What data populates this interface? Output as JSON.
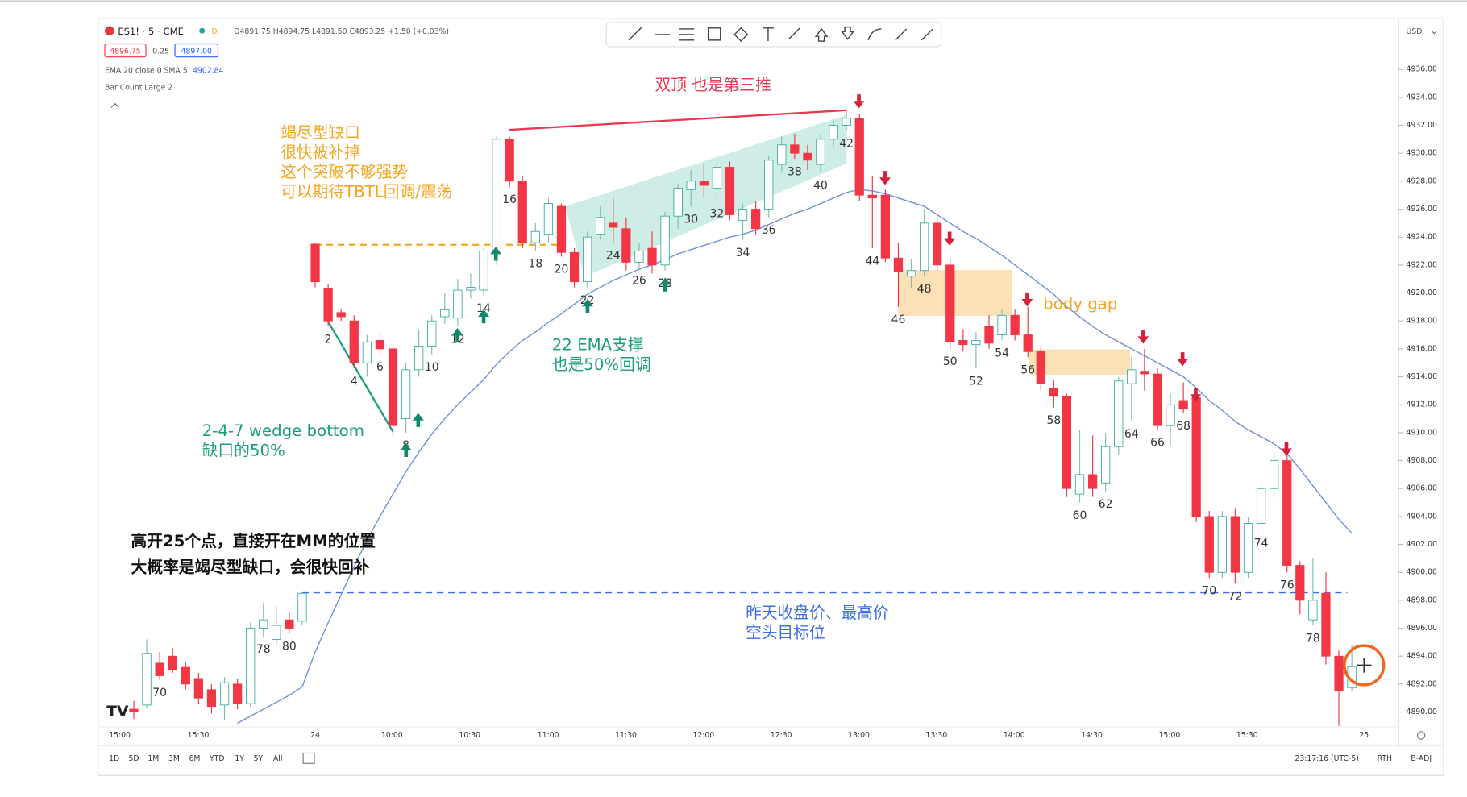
{
  "header": {
    "symbol": "ES1! · 5 · CME",
    "ohlc": "O4891.75 H4894.75 L4891.50 C4893.25 +1.50 (+0.03%)",
    "bid": "4896.75",
    "spread": "0.25",
    "ask": "4897.00",
    "indicator": "EMA 20 close 0 SMA 5",
    "indicator_value": "4902.84",
    "bar_count": "Bar Count Large 2",
    "currency": "USD"
  },
  "chart_data": {
    "type": "candlestick",
    "up_color": "#ffffff",
    "up_border": "#26a69a",
    "down_color": "#f23645",
    "ema_color": "#6f8fdc",
    "ohlc": [
      [
        4890.2,
        4890.8,
        4889.5,
        4890.0
      ],
      [
        4890.5,
        4895.2,
        4890.3,
        4894.2
      ],
      [
        4893.5,
        4894.3,
        4892.3,
        4892.6
      ],
      [
        4894.0,
        4894.6,
        4892.8,
        4893.0
      ],
      [
        4893.2,
        4893.6,
        4891.6,
        4892.0
      ],
      [
        4892.4,
        4892.8,
        4890.6,
        4891.0
      ],
      [
        4891.6,
        4892.0,
        4889.9,
        4890.4
      ],
      [
        4890.5,
        4892.5,
        4889.4,
        4892.1
      ],
      [
        4892.0,
        4892.4,
        4890.2,
        4890.6
      ],
      [
        4890.6,
        4896.4,
        4890.4,
        4896.0
      ],
      [
        4896.0,
        4897.8,
        4895.4,
        4896.6
      ],
      [
        4895.2,
        4897.6,
        4894.8,
        4896.2
      ],
      [
        4896.6,
        4897.2,
        4895.6,
        4896.0
      ],
      [
        4896.5,
        4898.6,
        4896.2,
        4898.5
      ],
      [
        4923.5,
        4923.6,
        4920.4,
        4920.8
      ],
      [
        4920.3,
        4920.6,
        4917.6,
        4918.0
      ],
      [
        4918.6,
        4918.8,
        4918.0,
        4918.3
      ],
      [
        4918.0,
        4918.4,
        4914.6,
        4915.0
      ],
      [
        4915.0,
        4917.0,
        4914.0,
        4916.5
      ],
      [
        4916.6,
        4917.2,
        4915.6,
        4916.0
      ],
      [
        4916.0,
        4916.2,
        4909.6,
        4910.5
      ],
      [
        4911.0,
        4915.0,
        4910.0,
        4914.5
      ],
      [
        4914.5,
        4917.4,
        4914.0,
        4916.2
      ],
      [
        4916.2,
        4918.4,
        4915.6,
        4918.0
      ],
      [
        4918.3,
        4920.0,
        4917.8,
        4918.8
      ],
      [
        4918.2,
        4921.0,
        4917.6,
        4920.2
      ],
      [
        4920.2,
        4921.4,
        4919.6,
        4920.4
      ],
      [
        4920.2,
        4923.2,
        4919.8,
        4923.0
      ],
      [
        4923.0,
        4931.2,
        4922.0,
        4931.0
      ],
      [
        4931.0,
        4931.2,
        4927.6,
        4928.0
      ],
      [
        4928.0,
        4928.4,
        4923.2,
        4923.6
      ],
      [
        4923.6,
        4925.0,
        4923.0,
        4924.4
      ],
      [
        4924.2,
        4926.8,
        4923.6,
        4926.4
      ],
      [
        4926.2,
        4926.4,
        4922.6,
        4922.9
      ],
      [
        4922.9,
        4923.2,
        4920.4,
        4920.8
      ],
      [
        4920.8,
        4924.4,
        4920.4,
        4924.0
      ],
      [
        4924.2,
        4926.2,
        4923.8,
        4925.4
      ],
      [
        4925.0,
        4926.8,
        4923.6,
        4924.7
      ],
      [
        4924.6,
        4925.4,
        4921.6,
        4922.2
      ],
      [
        4922.2,
        4923.6,
        4921.8,
        4923.0
      ],
      [
        4923.2,
        4924.4,
        4921.4,
        4922.0
      ],
      [
        4922.0,
        4925.8,
        4921.6,
        4925.5
      ],
      [
        4925.5,
        4927.8,
        4924.6,
        4927.5
      ],
      [
        4927.4,
        4928.8,
        4926.2,
        4928.0
      ],
      [
        4928.0,
        4929.2,
        4926.8,
        4927.7
      ],
      [
        4927.5,
        4929.4,
        4926.6,
        4929.0
      ],
      [
        4929.0,
        4929.4,
        4925.2,
        4925.6
      ],
      [
        4925.2,
        4926.4,
        4923.8,
        4926.0
      ],
      [
        4926.0,
        4926.6,
        4924.2,
        4924.6
      ],
      [
        4926.0,
        4929.8,
        4925.4,
        4929.5
      ],
      [
        4929.2,
        4931.2,
        4928.6,
        4930.6
      ],
      [
        4930.6,
        4931.4,
        4929.6,
        4930.0
      ],
      [
        4930.0,
        4930.6,
        4928.8,
        4929.5
      ],
      [
        4929.2,
        4931.4,
        4928.6,
        4931.0
      ],
      [
        4931.0,
        4932.4,
        4930.4,
        4932.0
      ],
      [
        4932.0,
        4933.0,
        4931.6,
        4932.5
      ],
      [
        4932.5,
        4932.8,
        4926.6,
        4927.0
      ],
      [
        4927.0,
        4928.4,
        4923.2,
        4926.8
      ],
      [
        4927.0,
        4927.4,
        4922.2,
        4922.5
      ],
      [
        4922.5,
        4923.6,
        4919.0,
        4921.5
      ],
      [
        4921.2,
        4922.4,
        4920.4,
        4921.6
      ],
      [
        4921.6,
        4926.0,
        4921.2,
        4925.0
      ],
      [
        4925.0,
        4925.6,
        4921.6,
        4922.0
      ],
      [
        4922.0,
        4922.4,
        4916.0,
        4916.5
      ],
      [
        4916.6,
        4917.4,
        4915.8,
        4916.3
      ],
      [
        4916.3,
        4917.2,
        4914.6,
        4916.6
      ],
      [
        4917.6,
        4918.4,
        4916.0,
        4916.4
      ],
      [
        4917.0,
        4918.8,
        4916.6,
        4918.4
      ],
      [
        4918.4,
        4918.8,
        4916.6,
        4917.0
      ],
      [
        4917.0,
        4919.0,
        4915.4,
        4915.8
      ],
      [
        4915.8,
        4916.2,
        4913.0,
        4913.5
      ],
      [
        4913.2,
        4913.8,
        4911.8,
        4912.6
      ],
      [
        4912.6,
        4912.8,
        4905.4,
        4906.0
      ],
      [
        4905.6,
        4910.2,
        4905.0,
        4907.0
      ],
      [
        4907.0,
        4909.8,
        4905.4,
        4906.0
      ],
      [
        4906.4,
        4910.0,
        4905.8,
        4909.0
      ],
      [
        4909.0,
        4914.0,
        4908.4,
        4913.7
      ],
      [
        4913.5,
        4915.4,
        4910.8,
        4914.5
      ],
      [
        4914.4,
        4916.0,
        4913.0,
        4914.2
      ],
      [
        4914.2,
        4914.6,
        4910.2,
        4910.5
      ],
      [
        4910.5,
        4912.8,
        4909.0,
        4912.0
      ],
      [
        4912.3,
        4913.6,
        4911.4,
        4911.7
      ],
      [
        4912.5,
        4913.0,
        4903.6,
        4904.0
      ],
      [
        4904.0,
        4904.4,
        4899.6,
        4900.0
      ],
      [
        4900.0,
        4904.4,
        4899.6,
        4904.0
      ],
      [
        4904.0,
        4904.6,
        4899.2,
        4900.0
      ],
      [
        4900.0,
        4904.0,
        4899.6,
        4903.5
      ],
      [
        4903.5,
        4906.4,
        4903.0,
        4906.0
      ],
      [
        4906.0,
        4908.6,
        4905.4,
        4908.0
      ],
      [
        4908.0,
        4908.4,
        4900.0,
        4900.5
      ],
      [
        4900.5,
        4900.8,
        4897.0,
        4898.0
      ],
      [
        4896.6,
        4901.0,
        4896.2,
        4898.0
      ],
      [
        4898.5,
        4900.0,
        4893.4,
        4894.0
      ],
      [
        4894.0,
        4894.4,
        4889.0,
        4891.5
      ],
      [
        4891.75,
        4894.75,
        4891.5,
        4893.25
      ]
    ],
    "bar_labels": [
      null,
      null,
      "70",
      null,
      null,
      null,
      null,
      null,
      null,
      null,
      "78",
      null,
      "80",
      null,
      null,
      "2",
      null,
      "4",
      null,
      "6",
      null,
      "8",
      null,
      "10",
      null,
      "12",
      null,
      "14",
      null,
      "16",
      null,
      "18",
      null,
      "20",
      null,
      "22",
      null,
      "24",
      null,
      "26",
      null,
      "28",
      null,
      "30",
      null,
      "32",
      null,
      "34",
      null,
      "36",
      null,
      "38",
      null,
      "40",
      null,
      "42",
      null,
      "44",
      null,
      "46",
      null,
      "48",
      null,
      "50",
      null,
      "52",
      null,
      "54",
      null,
      "56",
      null,
      "58",
      null,
      "60",
      null,
      "62",
      null,
      "64",
      null,
      "66",
      null,
      "68",
      null,
      "70",
      null,
      "72",
      null,
      "74",
      null,
      "76",
      null,
      "78",
      null,
      null,
      null
    ],
    "ema": [
      null,
      null,
      null,
      null,
      null,
      null,
      null,
      null,
      4889.2,
      4889.7,
      4890.2,
      4890.7,
      4891.2,
      4891.8,
      4894.3,
      4896.4,
      4898.4,
      4900.4,
      4902.3,
      4904.0,
      4905.6,
      4907.2,
      4908.6,
      4909.9,
      4911.0,
      4912.0,
      4912.9,
      4913.8,
      4914.9,
      4915.8,
      4916.6,
      4917.2,
      4917.9,
      4918.5,
      4919.2,
      4919.9,
      4920.4,
      4920.9,
      4921.3,
      4921.7,
      4922.0,
      4922.4,
      4922.8,
      4923.1,
      4923.4,
      4923.7,
      4924.0,
      4924.2,
      4924.5,
      4924.9,
      4925.3,
      4925.7,
      4926.0,
      4926.4,
      4926.8,
      4927.2,
      4927.4,
      4927.3,
      4927.1,
      4926.8,
      4926.5,
      4926.2,
      4925.6,
      4925.0,
      4924.4,
      4923.9,
      4923.3,
      4922.7,
      4922.0,
      4921.3,
      4920.6,
      4919.9,
      4919.0,
      4918.3,
      4917.6,
      4917.0,
      4916.5,
      4916.0,
      4915.5,
      4915.0,
      4914.5,
      4914.0,
      4913.2,
      4912.3,
      4911.6,
      4910.8,
      4910.2,
      4909.7,
      4909.2,
      4908.5,
      4907.4,
      4906.2,
      4905.0,
      4903.8,
      4902.8
    ],
    "ylim": [
      4889,
      4939.5
    ],
    "yticks": [
      {
        "value": 4890,
        "label": "4890.00"
      },
      {
        "value": 4892,
        "label": "4892.00"
      },
      {
        "value": 4894,
        "label": "4894.00"
      },
      {
        "value": 4896,
        "label": "4896.00"
      },
      {
        "value": 4898,
        "label": "4898.00"
      },
      {
        "value": 4900,
        "label": "4900.00"
      },
      {
        "value": 4902,
        "label": "4902.00"
      },
      {
        "value": 4904,
        "label": "4904.00"
      },
      {
        "value": 4906,
        "label": "4906.00"
      },
      {
        "value": 4908,
        "label": "4908.00"
      },
      {
        "value": 4910,
        "label": "4910.00"
      },
      {
        "value": 4912,
        "label": "4912.00"
      },
      {
        "value": 4914,
        "label": "4914.00"
      },
      {
        "value": 4916,
        "label": "4916.00"
      },
      {
        "value": 4918,
        "label": "4918.00"
      },
      {
        "value": 4920,
        "label": "4920.00"
      },
      {
        "value": 4922,
        "label": "4922.00"
      },
      {
        "value": 4924,
        "label": "4924.00"
      },
      {
        "value": 4926,
        "label": "4926.00"
      },
      {
        "value": 4928,
        "label": "4928.00"
      },
      {
        "value": 4930,
        "label": "4930.00"
      },
      {
        "value": 4932,
        "label": "4932.00"
      },
      {
        "value": 4934,
        "label": "4934.00"
      },
      {
        "value": 4936,
        "label": "4936.00"
      }
    ],
    "x_labels": [
      "15:00",
      "15:30",
      "24",
      "10:00",
      "10:30",
      "11:00",
      "11:30",
      "12:00",
      "12:30",
      "13:00",
      "13:30",
      "14:00",
      "14:30",
      "15:00",
      "15:30",
      "25"
    ],
    "annotations": {
      "double_top": "双顶 也是第三推",
      "gap_note": [
        "竭尽型缺口",
        "很快被补掉",
        "这个突破不够强势",
        "可以期待TBTL回调/震荡"
      ],
      "ema_note": [
        "22 EMA支撑",
        "也是50%回调"
      ],
      "wedge_note": [
        "2-4-7 wedge bottom",
        "缺口的50%"
      ],
      "open_note": [
        "高开25个点，直接开在MM的位置",
        "大概率是竭尽型缺口，会很快回补"
      ],
      "target_note": [
        "昨天收盘价、最高价",
        "空头目标位"
      ],
      "body_gap": "body gap"
    }
  },
  "footer": {
    "ranges": [
      "1D",
      "5D",
      "1M",
      "3M",
      "6M",
      "YTD",
      "1Y",
      "5Y",
      "All"
    ],
    "clock": "23:17:16 (UTC-5)",
    "session": "RTH",
    "adjust": "B-ADJ"
  }
}
